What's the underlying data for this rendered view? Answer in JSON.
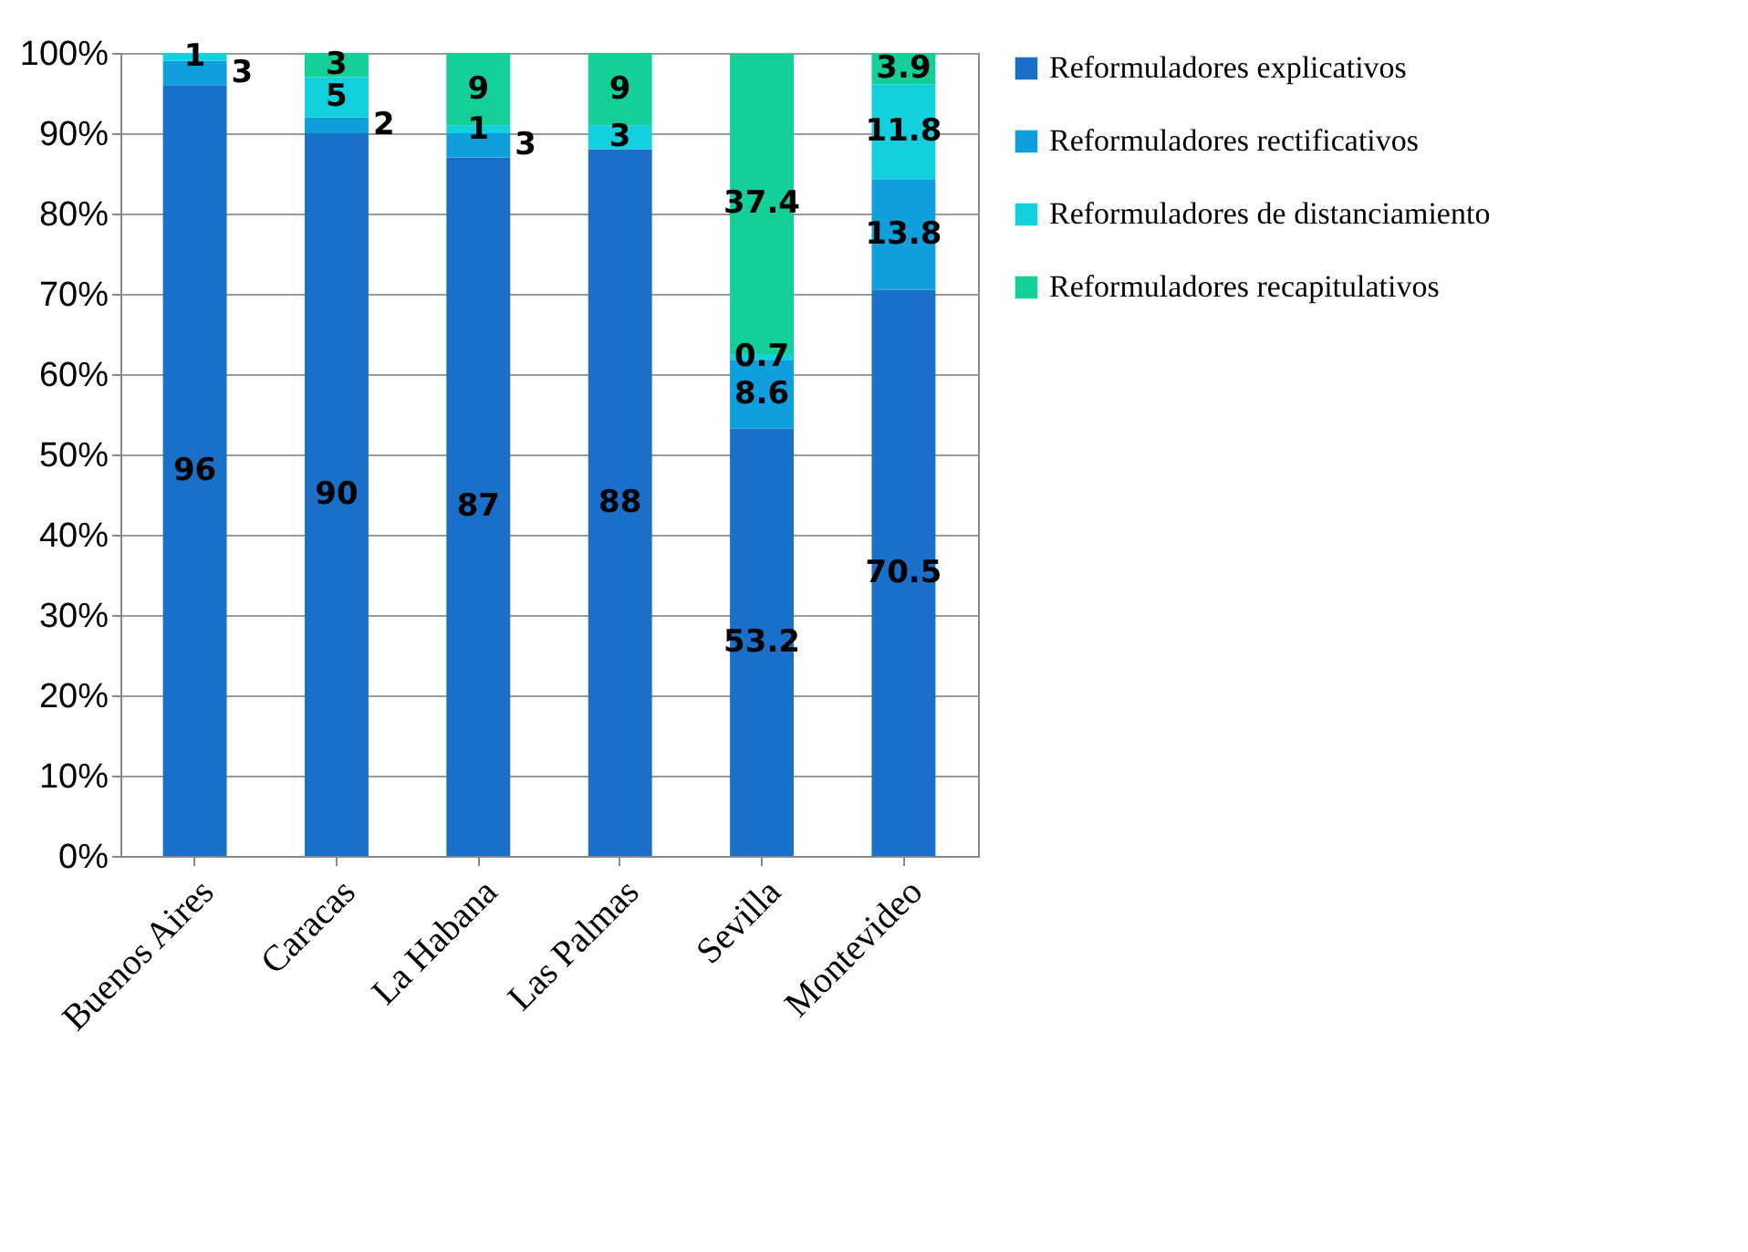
{
  "chart_data": {
    "type": "bar",
    "stacked": true,
    "data_labels": true,
    "grid": "y",
    "legend": "right",
    "categories": [
      "Buenos Aires",
      "Caracas",
      "La Habana",
      "Las Palmas",
      "Sevilla",
      "Montevideo"
    ],
    "ylim": [
      0,
      100
    ],
    "yticks": [
      {
        "value": 0,
        "label": "0%"
      },
      {
        "value": 10,
        "label": "10%"
      },
      {
        "value": 20,
        "label": "20%"
      },
      {
        "value": 30,
        "label": "30%"
      },
      {
        "value": 40,
        "label": "40%"
      },
      {
        "value": 50,
        "label": "50%"
      },
      {
        "value": 60,
        "label": "60%"
      },
      {
        "value": 70,
        "label": "70%"
      },
      {
        "value": 80,
        "label": "80%"
      },
      {
        "value": 90,
        "label": "90%"
      },
      {
        "value": 100,
        "label": "100%"
      }
    ],
    "series": [
      {
        "name": "Reformuladores explicativos",
        "color": "#1a6fc8",
        "values": [
          96,
          90,
          87,
          88,
          53.2,
          70.5
        ]
      },
      {
        "name": "Reformuladores rectificativos",
        "color": "#0f9fdc",
        "values": [
          3,
          2,
          3,
          null,
          8.6,
          13.8
        ]
      },
      {
        "name": "Reformuladores de distanciamiento",
        "color": "#12d0de",
        "values": [
          1,
          5,
          1,
          3,
          0.7,
          11.8
        ]
      },
      {
        "name": "Reformuladores recapitulativos",
        "color": "#14cf98",
        "values": [
          null,
          3,
          9,
          9,
          37.4,
          3.9
        ]
      }
    ]
  }
}
